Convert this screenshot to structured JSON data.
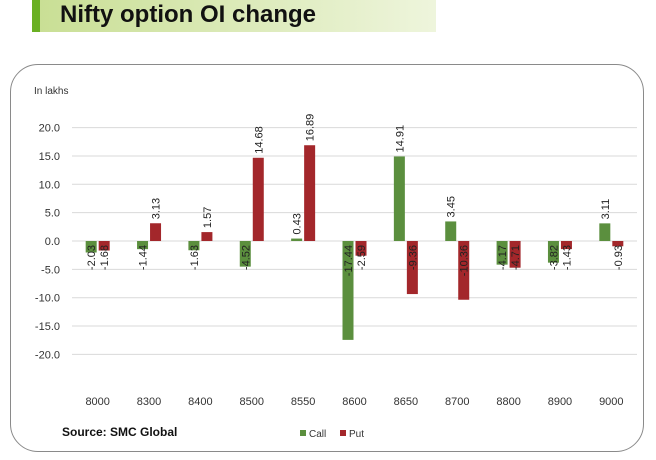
{
  "header": {
    "title": "Nifty option OI change"
  },
  "source": "Source: SMC Global",
  "colors": {
    "call": "#5b8f3e",
    "put": "#a3272b",
    "grid": "#d9d9d9",
    "text": "#333333"
  },
  "chart_data": {
    "type": "bar",
    "title": "",
    "unit_label": "In lakhs",
    "categories": [
      "8000",
      "8300",
      "8400",
      "8500",
      "8550",
      "8600",
      "8650",
      "8700",
      "8800",
      "8900",
      "9000"
    ],
    "series": [
      {
        "name": "Call",
        "values": [
          -2.03,
          -1.44,
          -1.63,
          -4.52,
          0.43,
          -17.44,
          14.91,
          3.45,
          -4.17,
          -3.82,
          3.11
        ],
        "labels": [
          "-2.03",
          "-1.44",
          "-1.63",
          "-4.52",
          "0.43",
          "-17.44",
          "14.91",
          "3.45",
          "-4.17",
          "-3.82",
          "3.11"
        ]
      },
      {
        "name": "Put",
        "values": [
          -1.68,
          3.13,
          1.57,
          14.68,
          16.89,
          -2.59,
          -9.36,
          -10.36,
          -4.71,
          -1.43,
          -0.93
        ],
        "labels": [
          "-1.68",
          "3.13",
          "1.57",
          "14.68",
          "16.89",
          "-2.59",
          "-9.36",
          "-10.36",
          "-4.71",
          "-1.43",
          "-0.93"
        ]
      }
    ],
    "ylim": [
      -20,
      20
    ],
    "yticks": [
      20,
      15,
      10,
      5,
      0,
      -5,
      -10,
      -15,
      -20
    ],
    "ytick_labels": [
      "20.0",
      "15.0",
      "10.0",
      "5.0",
      "0.0",
      "-5.0",
      "-10.0",
      "-15.0",
      "-20.0"
    ],
    "legend": {
      "position": "bottom-right",
      "entries": [
        "Call",
        "Put"
      ]
    },
    "grid": true
  }
}
